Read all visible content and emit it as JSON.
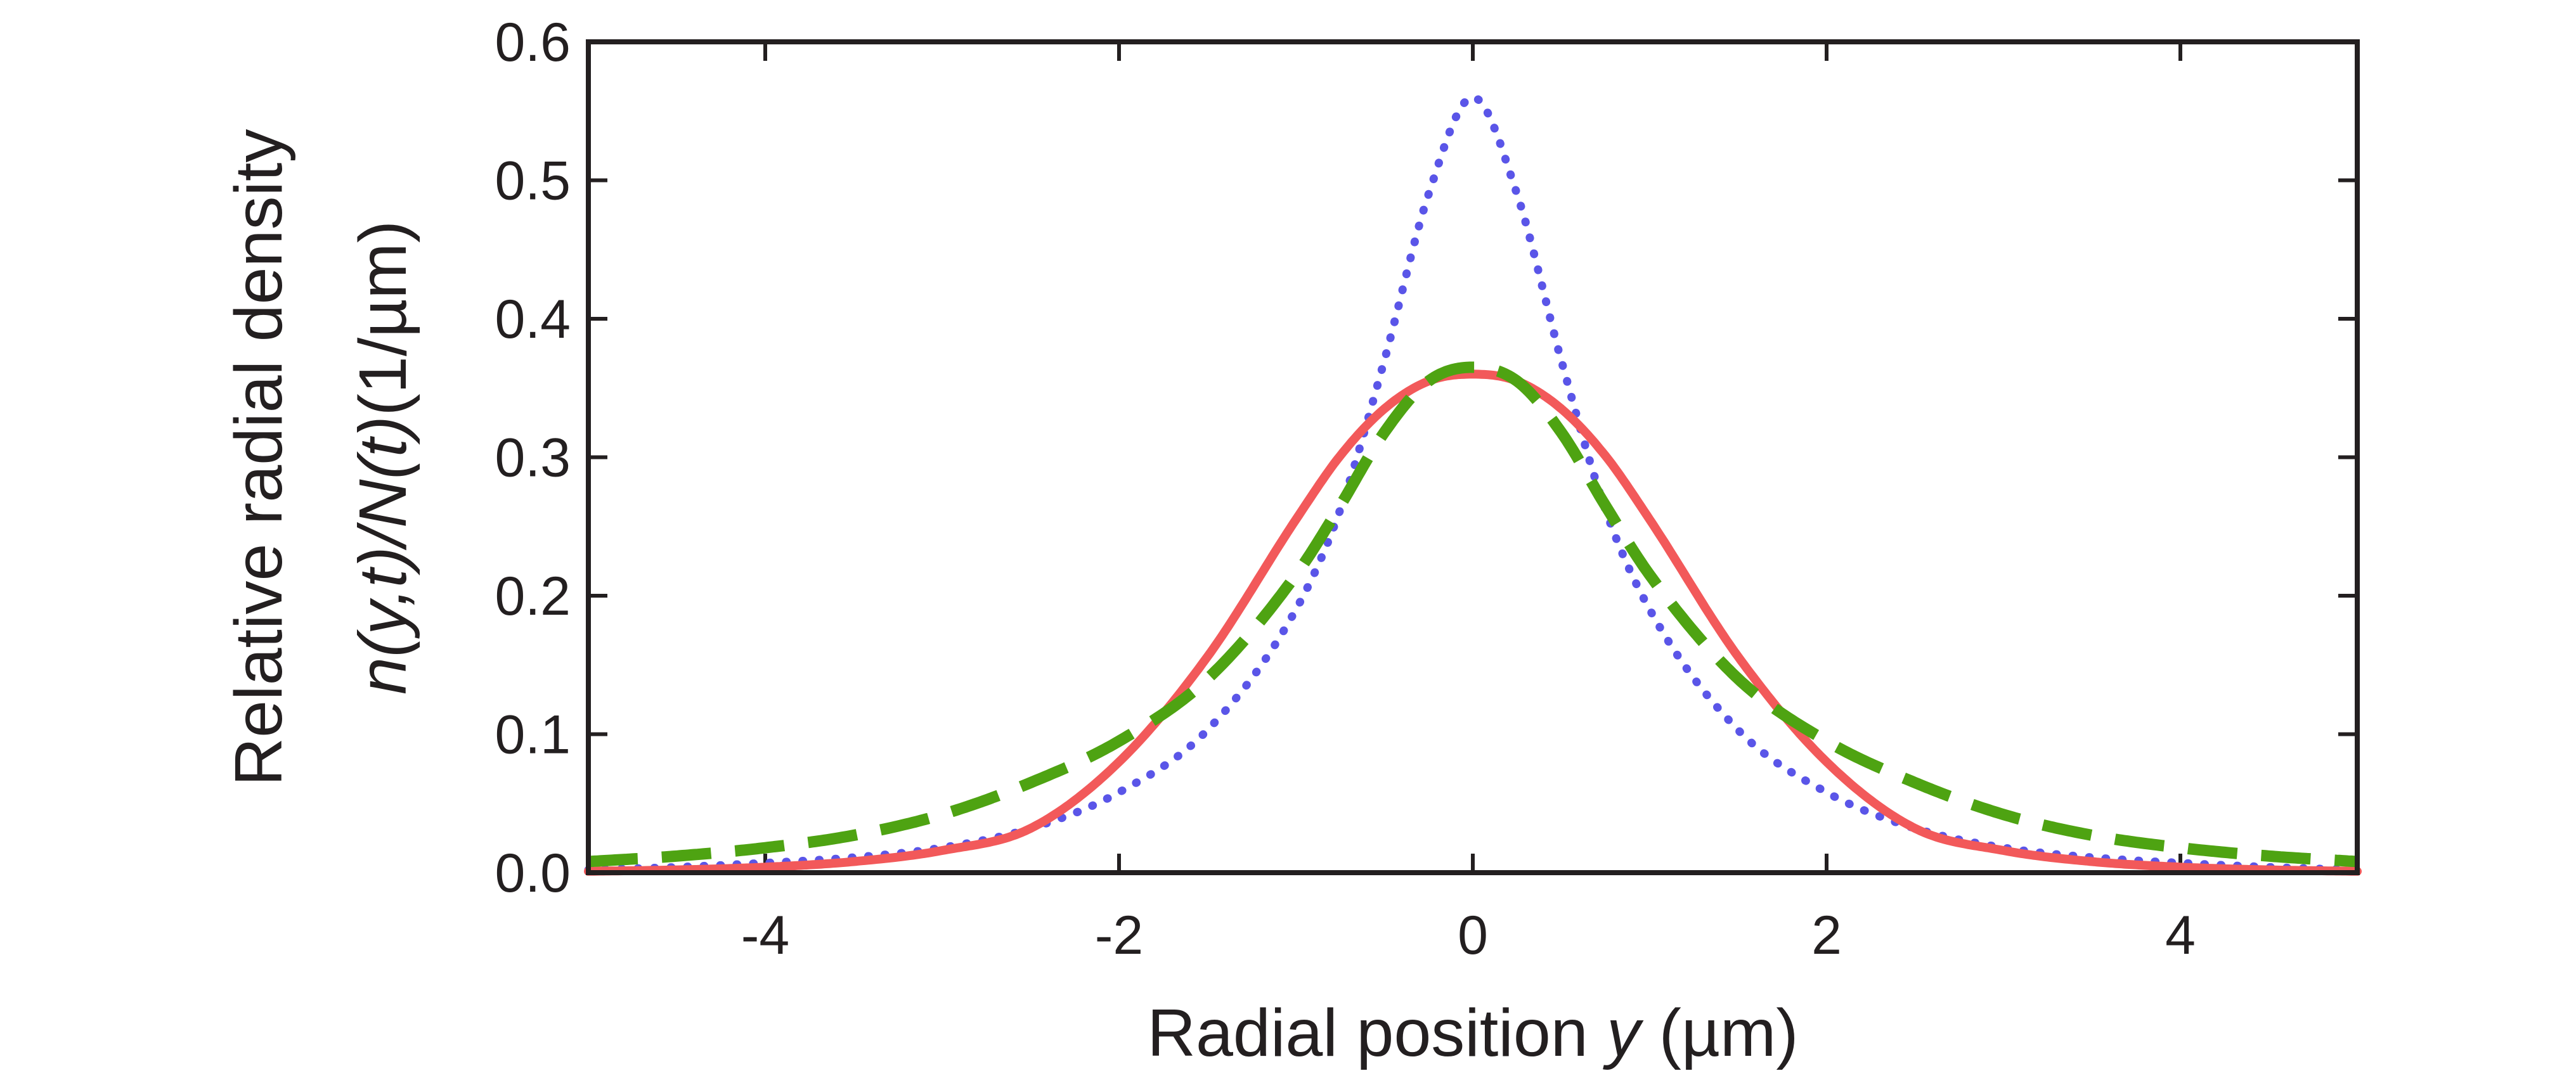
{
  "chart_data": {
    "type": "line",
    "title": "",
    "xlabel": {
      "text_before": "Radial position ",
      "italic_var": "y",
      "text_after": " (µm)"
    },
    "ylabel": {
      "line1": "Relative radial density",
      "line2_italic": "n(y,t)/N(t)",
      "line2_units": "(1/µm)"
    },
    "xlim": [
      -5,
      5
    ],
    "ylim": [
      0,
      0.6
    ],
    "xticks": [
      -4,
      -2,
      0,
      2,
      4
    ],
    "xtick_labels": [
      "-4",
      "-2",
      "0",
      "2",
      "4"
    ],
    "yticks": [
      0,
      0.1,
      0.2,
      0.3,
      0.4,
      0.5,
      0.6
    ],
    "ytick_labels": [
      "0.0",
      "0.1",
      "0.2",
      "0.3",
      "0.4",
      "0.5",
      "0.6"
    ],
    "grid": false,
    "legend": "none",
    "x": [
      -5,
      -4.5,
      -4,
      -3.5,
      -3,
      -2.5,
      -2,
      -1.5,
      -1,
      -0.75,
      -0.5,
      -0.25,
      0,
      0.25,
      0.5,
      0.75,
      1,
      1.5,
      2,
      2.5,
      3,
      3.5,
      4,
      4.5,
      5
    ],
    "series": [
      {
        "name": "red solid",
        "style": "solid",
        "color": "#f2595a",
        "values": [
          0.001,
          0.002,
          0.004,
          0.008,
          0.016,
          0.032,
          0.08,
          0.156,
          0.255,
          0.301,
          0.335,
          0.355,
          0.36,
          0.355,
          0.335,
          0.301,
          0.255,
          0.156,
          0.08,
          0.032,
          0.016,
          0.008,
          0.004,
          0.002,
          0.001
        ]
      },
      {
        "name": "blue dotted",
        "style": "dotted",
        "color": "#5a55e8",
        "values": [
          0.002,
          0.004,
          0.007,
          0.011,
          0.018,
          0.032,
          0.058,
          0.103,
          0.19,
          0.262,
          0.37,
          0.49,
          0.56,
          0.49,
          0.37,
          0.262,
          0.19,
          0.103,
          0.058,
          0.032,
          0.018,
          0.011,
          0.007,
          0.004,
          0.002
        ]
      },
      {
        "name": "green dashed",
        "style": "dashed",
        "color": "#4ea312",
        "values": [
          0.008,
          0.012,
          0.018,
          0.027,
          0.042,
          0.065,
          0.095,
          0.14,
          0.215,
          0.265,
          0.318,
          0.355,
          0.365,
          0.355,
          0.318,
          0.265,
          0.215,
          0.14,
          0.095,
          0.065,
          0.042,
          0.027,
          0.018,
          0.012,
          0.008
        ]
      }
    ]
  }
}
